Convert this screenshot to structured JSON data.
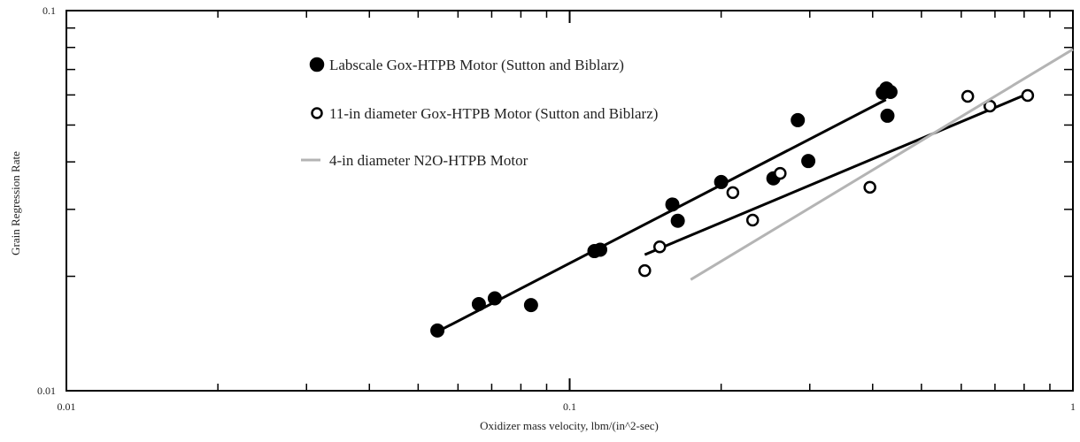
{
  "chart_data": {
    "type": "scatter",
    "x_label": "Oxidizer mass velocity, lbm/(in^2-sec)",
    "y_label": "Grain Regression Rate",
    "log_x": true,
    "log_y": true,
    "xlim": [
      0.01,
      1
    ],
    "ylim": [
      0.01,
      0.1
    ],
    "xticks": [
      0.01,
      0.1,
      1
    ],
    "yticks": [
      0.01,
      0.1
    ],
    "xminor": [
      0.02,
      0.03,
      0.04,
      0.05,
      0.06,
      0.07,
      0.08,
      0.09,
      0.2,
      0.3,
      0.4,
      0.5,
      0.6,
      0.7,
      0.8,
      0.9
    ],
    "yminor": [
      0.02,
      0.03,
      0.04,
      0.05,
      0.06,
      0.07,
      0.08,
      0.09
    ],
    "series": [
      {
        "name": "Labscale Gox-HTPB Motor (Sutton and Biblarz)",
        "color": "#000000",
        "marker": "filled",
        "x": [
          0.0546,
          0.066,
          0.071,
          0.0838,
          0.112,
          0.115,
          0.16,
          0.164,
          0.2,
          0.254,
          0.284,
          0.298,
          0.419,
          0.426,
          0.434,
          0.428
        ],
        "values": [
          0.0144,
          0.0169,
          0.0175,
          0.0168,
          0.0233,
          0.0235,
          0.0309,
          0.028,
          0.0354,
          0.0362,
          0.0515,
          0.0402,
          0.0608,
          0.0624,
          0.0611,
          0.0529
        ]
      },
      {
        "name": "11-in diameter Gox-HTPB Motor (Sutton and Biblarz)",
        "color": "#000000",
        "marker": "open",
        "x": [
          0.141,
          0.151,
          0.211,
          0.231,
          0.262,
          0.395,
          0.618,
          0.684,
          0.813
        ],
        "values": [
          0.0207,
          0.0239,
          0.0332,
          0.0281,
          0.0373,
          0.0343,
          0.0595,
          0.0561,
          0.0598
        ]
      },
      {
        "name": "4-in diameter N2O-HTPB Motor",
        "color": "#b4b4b4",
        "marker": "line",
        "x": [
          0.174,
          1
        ],
        "values": [
          0.0196,
          0.0791
        ]
      }
    ],
    "fit_lines": [
      {
        "color": "#000000",
        "x": [
          0.0546,
          0.425
        ],
        "values": [
          0.0143,
          0.0583
        ]
      },
      {
        "color": "#000000",
        "x": [
          0.141,
          0.813
        ],
        "values": [
          0.0228,
          0.0604
        ]
      }
    ]
  }
}
